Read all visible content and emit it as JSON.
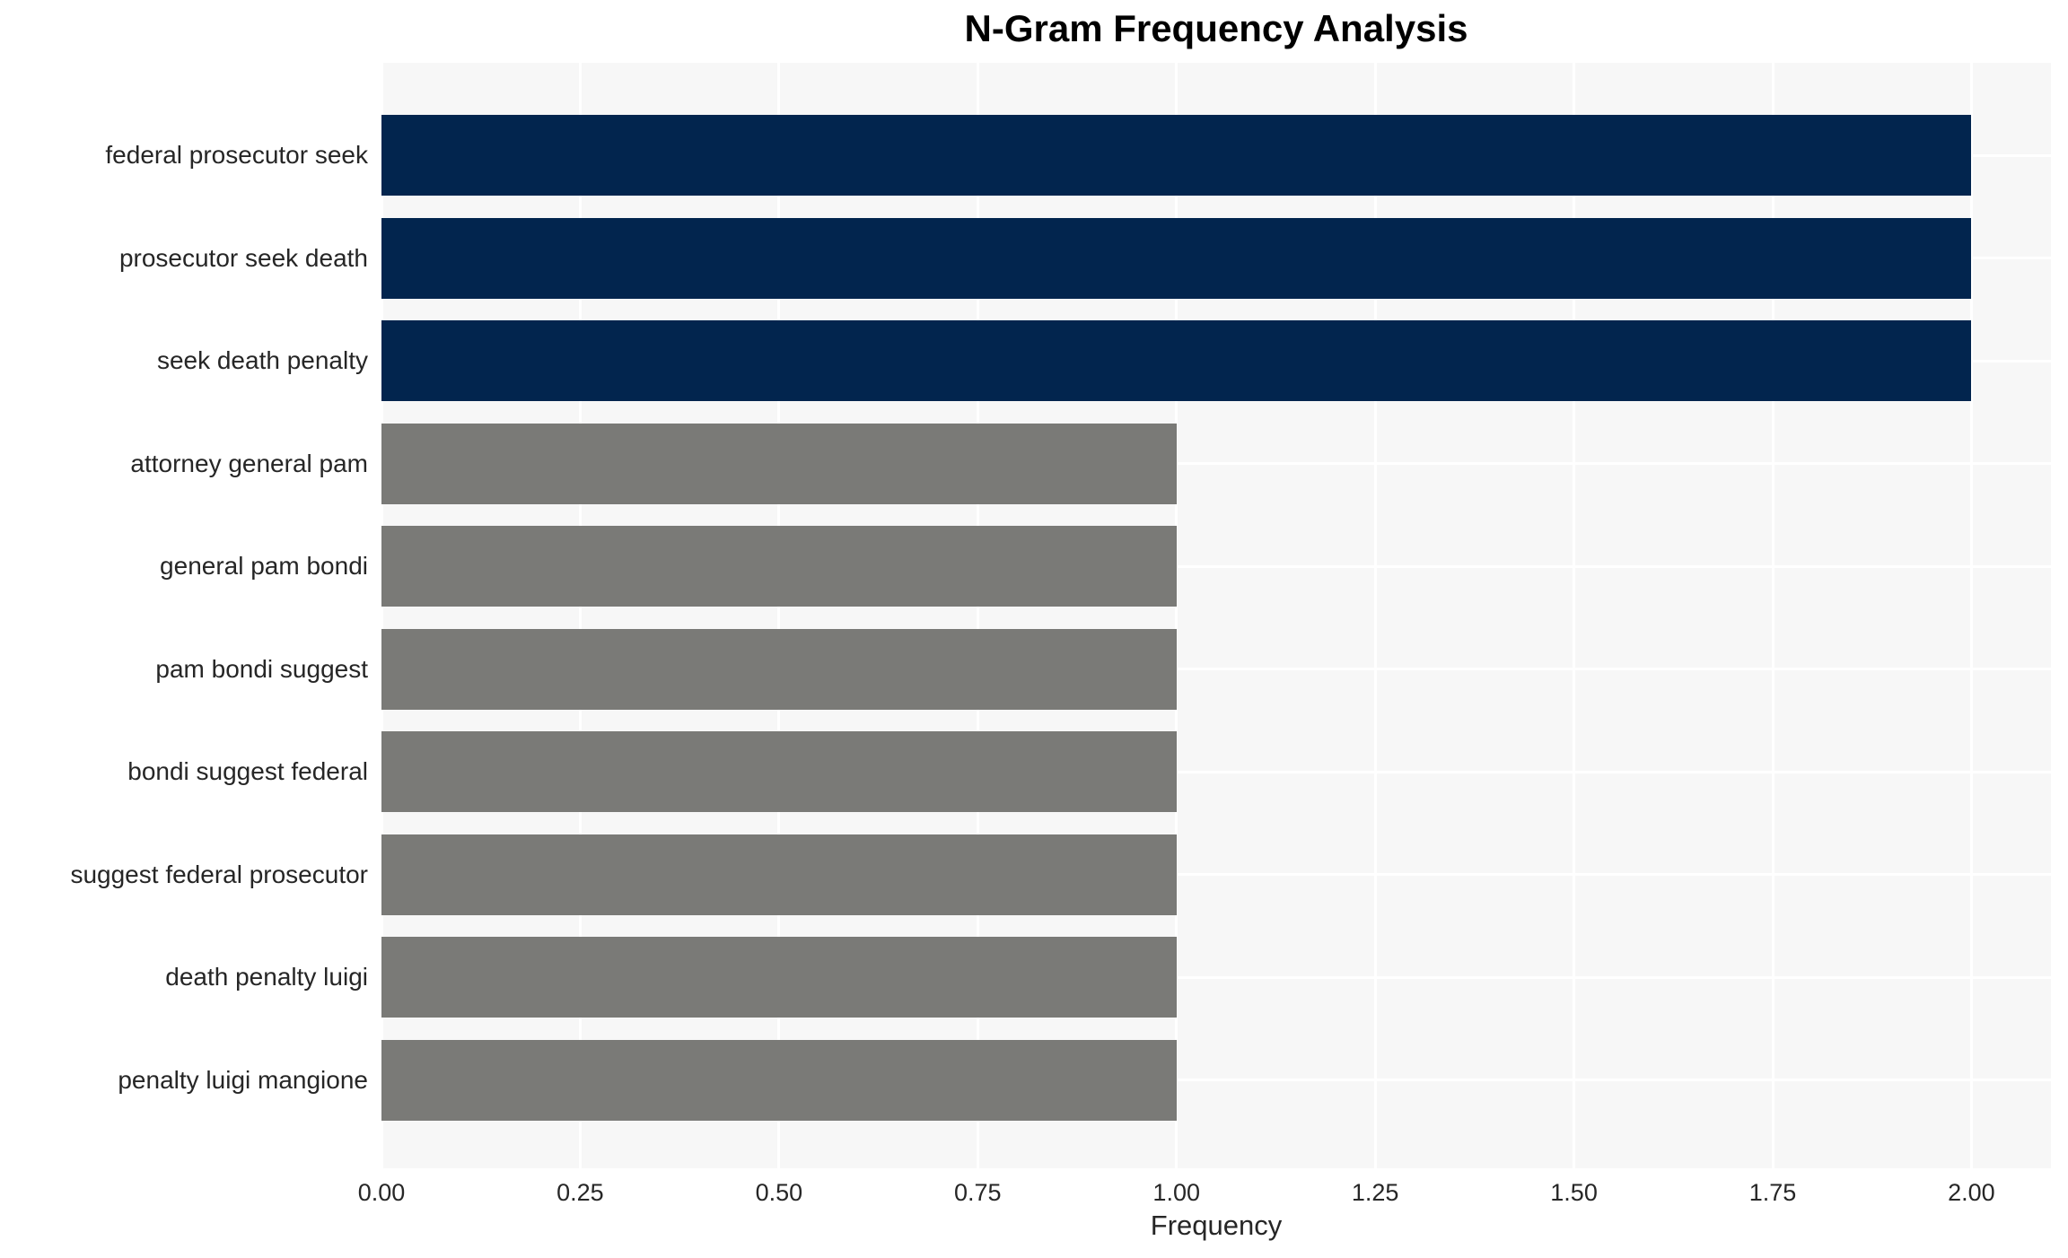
{
  "chart_data": {
    "type": "bar",
    "orientation": "horizontal",
    "title": "N-Gram Frequency Analysis",
    "xlabel": "Frequency",
    "ylabel": "",
    "categories": [
      "federal prosecutor seek",
      "prosecutor seek death",
      "seek death penalty",
      "attorney general pam",
      "general pam bondi",
      "pam bondi suggest",
      "bondi suggest federal",
      "suggest federal prosecutor",
      "death penalty luigi",
      "penalty luigi mangione"
    ],
    "values": [
      2,
      2,
      2,
      1,
      1,
      1,
      1,
      1,
      1,
      1
    ],
    "bar_colors": [
      "#02254e",
      "#02254e",
      "#02254e",
      "#7a7a77",
      "#7a7a77",
      "#7a7a77",
      "#7a7a77",
      "#7a7a77",
      "#7a7a77",
      "#7a7a77"
    ],
    "xlim": [
      0,
      2.1
    ],
    "xticks": [
      "0.00",
      "0.25",
      "0.50",
      "0.75",
      "1.00",
      "1.25",
      "1.50",
      "1.75",
      "2.00"
    ],
    "grid": true,
    "legend": false,
    "colors": {
      "plot_background": "#f7f7f7",
      "figure_background": "#ffffff",
      "gridline": "#ffffff",
      "tick_text": "#262626",
      "title_text": "#000000",
      "bar_primary": "#02254e",
      "bar_secondary": "#7a7a77"
    }
  }
}
